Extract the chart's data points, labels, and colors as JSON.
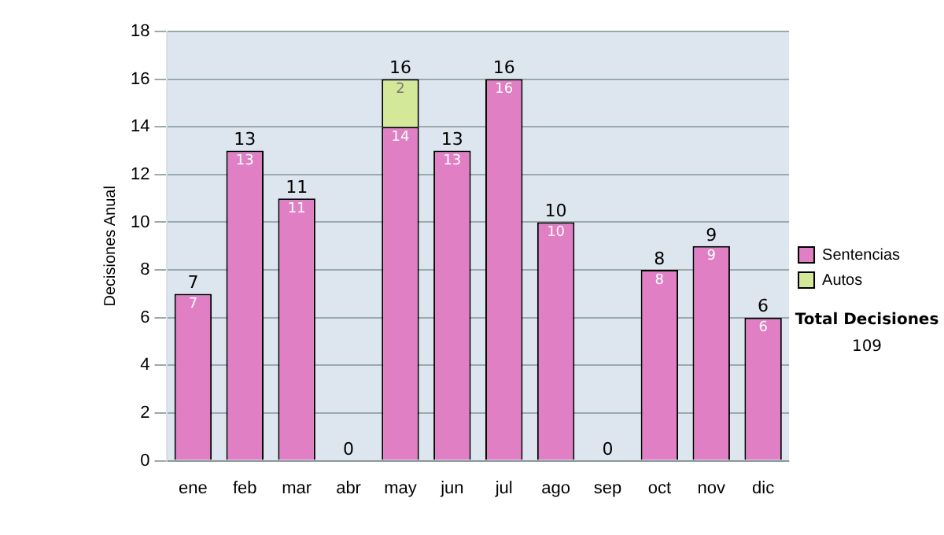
{
  "chart_data": {
    "type": "bar",
    "stacked": true,
    "ylabel": "Decisiones Anual",
    "categories": [
      "ene",
      "feb",
      "mar",
      "abr",
      "may",
      "jun",
      "jul",
      "ago",
      "sep",
      "oct",
      "nov",
      "dic"
    ],
    "series": [
      {
        "name": "Sentencias",
        "color": "#e07fc4",
        "values": [
          7,
          13,
          11,
          0,
          14,
          13,
          16,
          10,
          0,
          8,
          9,
          6
        ],
        "value_labels": [
          "7",
          "13",
          "11",
          null,
          "14",
          "13",
          "16",
          "10",
          null,
          "8",
          "9",
          "6"
        ]
      },
      {
        "name": "Autos",
        "color": "#d4e89a",
        "values": [
          null,
          null,
          null,
          null,
          2,
          null,
          null,
          null,
          null,
          null,
          null,
          null
        ],
        "value_labels": [
          null,
          null,
          null,
          null,
          "2",
          null,
          null,
          null,
          null,
          null,
          null,
          null
        ]
      }
    ],
    "totals": [
      "7",
      "13",
      "11",
      "0",
      "16",
      "13",
      "16",
      "10",
      "0",
      "8",
      "9",
      "6"
    ],
    "ylim": [
      0,
      18
    ],
    "yticks": [
      0,
      2,
      4,
      6,
      8,
      10,
      12,
      14,
      16,
      18
    ],
    "grid": "y",
    "legend": "right",
    "annotations": [
      "Total Decisiones",
      "109"
    ]
  }
}
